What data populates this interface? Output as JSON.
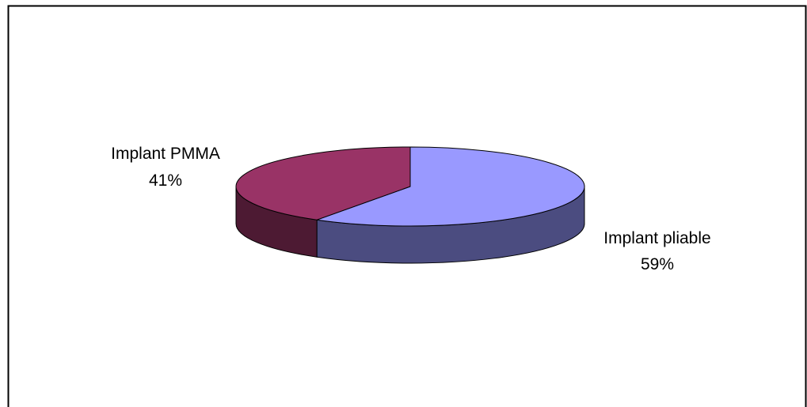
{
  "chart_data": {
    "type": "pie",
    "three_d": true,
    "start_angle_deg": 0,
    "direction": "clockwise",
    "slices": [
      {
        "label": "Implant pliable",
        "value": 59,
        "value_label": "59%",
        "color": "#9999ff",
        "side_color": "#4b4c80"
      },
      {
        "label": "Implant PMMA",
        "value": 41,
        "value_label": "41%",
        "color": "#993366",
        "side_color": "#4d1a33"
      }
    ]
  }
}
